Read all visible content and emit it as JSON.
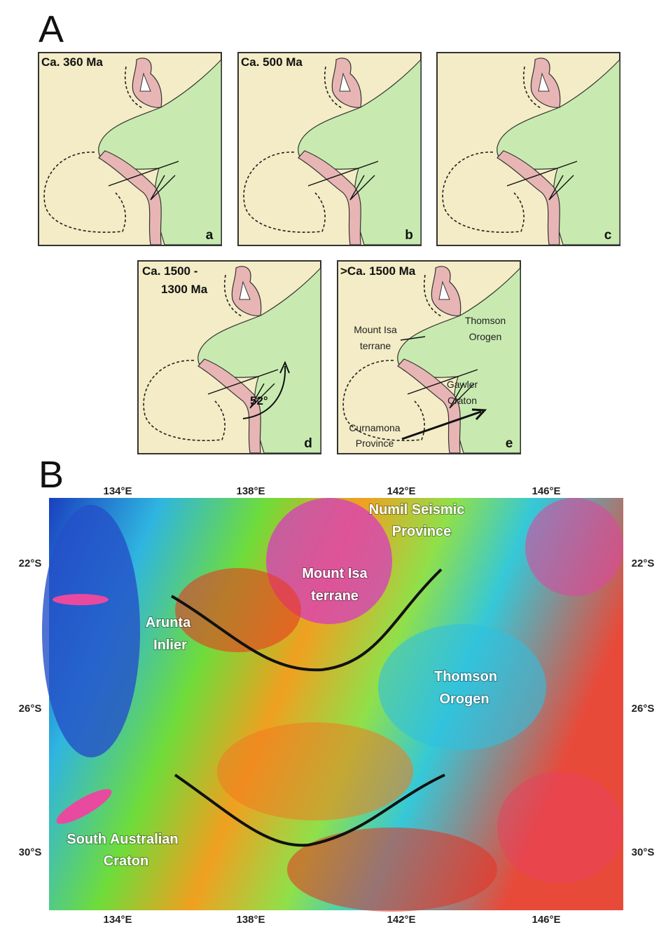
{
  "figure_a": {
    "label": "A",
    "panels": [
      {
        "title_lines": [
          "Ca. 360 Ma"
        ],
        "letter": "a"
      },
      {
        "title_lines": [
          "Ca. 500 Ma"
        ],
        "letter": "b"
      },
      {
        "letter": "c"
      },
      {
        "title_lines": [
          "Ca. 1500 -",
          "1300 Ma"
        ],
        "letter": "d",
        "rotation": "52°"
      },
      {
        "title_lines": [
          ">Ca. 1500 Ma"
        ],
        "letter": "e",
        "labels": [
          {
            "lines": [
              "Mount Isa",
              "terrane"
            ]
          },
          {
            "lines": [
              "Thomson",
              "Orogen"
            ]
          },
          {
            "lines": [
              "Gawler",
              "Craton"
            ]
          },
          {
            "lines": [
              "Curnamona",
              "Province"
            ]
          }
        ]
      }
    ]
  },
  "figure_b": {
    "label": "B",
    "lon_labels": [
      "134°E",
      "138°E",
      "142°E",
      "146°E"
    ],
    "lat_labels": [
      "22°S",
      "26°S",
      "30°S"
    ],
    "regions": [
      {
        "lines": [
          "Numil Seismic",
          "Province"
        ]
      },
      {
        "lines": [
          "Mount Isa",
          "terrane"
        ]
      },
      {
        "lines": [
          "Arunta",
          "Inlier"
        ]
      },
      {
        "lines": [
          "Thomson",
          "Orogen"
        ]
      },
      {
        "lines": [
          "South Australian",
          "Craton"
        ]
      }
    ]
  }
}
